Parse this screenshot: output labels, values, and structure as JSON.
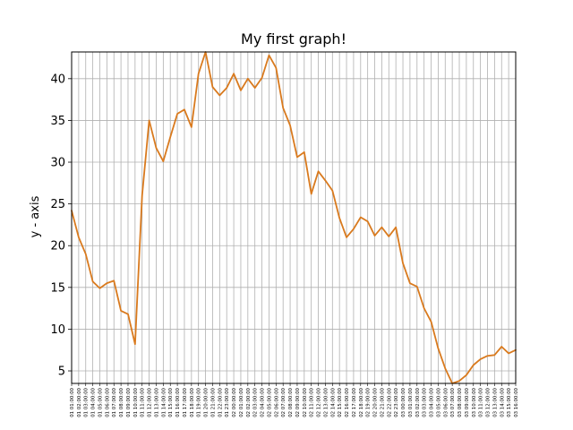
{
  "chart_data": {
    "type": "line",
    "title": "My first graph!",
    "xlabel": "",
    "ylabel": "y - axis",
    "grid": true,
    "ylim": [
      3.5,
      43.2
    ],
    "yticks": [
      5,
      10,
      15,
      20,
      25,
      30,
      35,
      40
    ],
    "line_color": "#d97a1e",
    "categories": [
      "01 01:00:00",
      "01 02:00:00",
      "01 03:00:00",
      "01 04:00:00",
      "01 05:00:00",
      "01 06:00:00",
      "01 07:00:00",
      "01 08:00:00",
      "01 09:00:00",
      "01 10:00:00",
      "01 11:00:00",
      "01 12:00:00",
      "01 13:00:00",
      "01 14:00:00",
      "01 15:00:00",
      "01 16:00:00",
      "01 17:00:00",
      "01 18:00:00",
      "01 19:00:00",
      "01 20:00:00",
      "01 21:00:00",
      "01 22:00:00",
      "01 23:00:00",
      "02 00:00:00",
      "02 01:00:00",
      "02 02:00:00",
      "02 03:00:00",
      "02 04:00:00",
      "02 05:00:00",
      "02 06:00:00",
      "02 07:00:00",
      "02 08:00:00",
      "02 09:00:00",
      "02 10:00:00",
      "02 11:00:00",
      "02 12:00:00",
      "02 13:00:00",
      "02 14:00:00",
      "02 15:00:00",
      "02 16:00:00",
      "02 17:00:00",
      "02 18:00:00",
      "02 19:00:00",
      "02 20:00:00",
      "02 21:00:00",
      "02 22:00:00",
      "02 23:00:00",
      "03 00:00:00",
      "03 01:00:00",
      "03 02:00:00",
      "03 03:00:00",
      "03 04:00:00",
      "03 05:00:00",
      "03 06:00:00",
      "03 07:00:00",
      "03 08:00:00",
      "03 09:00:00",
      "03 10:00:00",
      "03 11:00:00",
      "03 12:00:00",
      "03 13:00:00",
      "03 14:00:00",
      "03 15:00:00",
      "03 16:00:00"
    ],
    "series": [
      {
        "values": [
          24.2,
          21.0,
          19.0,
          15.7,
          14.9,
          15.5,
          15.8,
          12.2,
          11.8,
          8.2,
          26.0,
          35.0,
          31.7,
          30.1,
          33.0,
          35.8,
          36.3,
          34.2,
          40.6,
          43.2,
          39.0,
          38.0,
          38.9,
          40.6,
          38.6,
          40.0,
          38.9,
          40.1,
          42.8,
          41.3,
          36.5,
          34.4,
          30.6,
          31.2,
          26.2,
          28.9,
          27.8,
          26.6,
          23.3,
          21.0,
          22.0,
          23.4,
          22.9,
          21.2,
          22.2,
          21.1,
          22.2,
          17.9,
          15.5,
          15.1,
          12.5,
          10.9,
          7.7,
          5.3,
          3.5,
          3.8,
          4.5,
          5.7,
          6.4,
          6.8,
          6.9,
          7.9,
          7.1,
          7.5
        ]
      }
    ]
  }
}
